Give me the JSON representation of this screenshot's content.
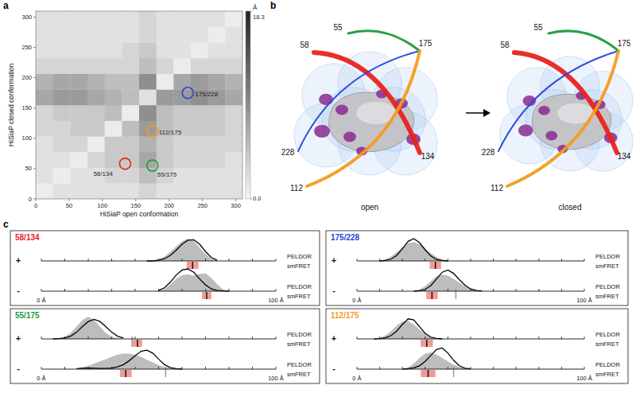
{
  "panel_labels": [
    "a",
    "b",
    "c"
  ],
  "chart_data": [
    {
      "type": "heatmap",
      "xlabel": "HiSiaP open conformation",
      "ylabel": "HiSiaP closed conformation",
      "xlim": [
        0,
        310
      ],
      "ylim": [
        0,
        310
      ],
      "xticks": [
        0,
        50,
        100,
        150,
        200,
        250,
        300
      ],
      "yticks": [
        0,
        50,
        100,
        150,
        200,
        250,
        300
      ],
      "cells": [
        [
          1,
          2,
          2,
          2,
          2,
          2,
          3,
          2,
          2,
          2,
          2,
          2
        ],
        [
          2,
          1,
          2,
          2,
          3,
          3,
          5,
          3,
          2,
          2,
          2,
          2
        ],
        [
          2,
          2,
          1,
          3,
          4,
          4,
          7,
          4,
          3,
          3,
          3,
          2
        ],
        [
          2,
          3,
          3,
          1,
          4,
          4,
          6,
          4,
          3,
          3,
          3,
          3
        ],
        [
          3,
          3,
          4,
          4,
          1,
          5,
          8,
          5,
          4,
          4,
          4,
          3
        ],
        [
          3,
          4,
          4,
          4,
          5,
          1,
          9,
          5,
          4,
          4,
          4,
          3
        ],
        [
          7,
          8,
          8,
          7,
          6,
          5,
          2,
          8,
          8,
          9,
          8,
          7
        ],
        [
          6,
          7,
          7,
          6,
          5,
          5,
          9,
          1,
          7,
          8,
          7,
          6
        ],
        [
          3,
          3,
          3,
          3,
          3,
          3,
          5,
          3,
          1,
          3,
          3,
          3
        ],
        [
          2,
          2,
          2,
          2,
          2,
          3,
          4,
          2,
          2,
          1,
          2,
          2
        ],
        [
          2,
          2,
          2,
          2,
          2,
          2,
          3,
          2,
          2,
          2,
          1,
          2
        ],
        [
          2,
          2,
          2,
          2,
          2,
          2,
          3,
          2,
          2,
          2,
          2,
          1
        ]
      ],
      "colorbar": {
        "label": "Å",
        "range": [
          0,
          18.3
        ],
        "ticks": [
          {
            "value": 0,
            "label": "0.0"
          },
          18.3
        ]
      },
      "annotations": [
        {
          "label": "58/134",
          "x": 134,
          "y": 58,
          "color": "#e8231f"
        },
        {
          "label": "55/175",
          "x": 175,
          "y": 55,
          "color": "#1f9a3a"
        },
        {
          "label": "112/175",
          "x": 175,
          "y": 112,
          "color": "#f39c1f"
        },
        {
          "label": "175/228",
          "x": 228,
          "y": 175,
          "color": "#2244dd"
        }
      ]
    },
    {
      "type": "distribution",
      "title": "58/134",
      "color": "#e8231f",
      "xlim": [
        0,
        100
      ],
      "ylim": [
        0,
        1
      ],
      "xticks": [
        {
          "value": 0,
          "label": "0 Å"
        },
        {
          "value": 100,
          "label": "100 Å"
        }
      ],
      "minor_ticks": [
        10,
        20,
        30,
        40,
        50,
        60,
        70,
        80,
        90
      ],
      "tick_labels": "x",
      "rows": [
        {
          "label": "+",
          "peldor": {
            "label": "PELDOR",
            "x": [
              45,
              47.5,
              50,
              52.5,
              55,
              57.5,
              60,
              62.5,
              65,
              67.5,
              70,
              72.5,
              75
            ],
            "values": [
              0,
              0.02,
              0.08,
              0.2,
              0.4,
              0.65,
              0.88,
              1.0,
              0.88,
              0.6,
              0.3,
              0.1,
              0.02
            ],
            "fit": [
              0,
              0,
              0.03,
              0.1,
              0.25,
              0.48,
              0.75,
              0.93,
              0.95,
              0.75,
              0.42,
              0.15,
              0.03
            ]
          },
          "smfret": {
            "label": "smFRET",
            "value": 64.5,
            "error": 2.5
          }
        },
        {
          "label": "-",
          "peldor": {
            "label": "PELDOR",
            "x": [
              50,
              52.5,
              55,
              57.5,
              60,
              62.5,
              65,
              67.5,
              70,
              72.5,
              75,
              77.5,
              80
            ],
            "values": [
              0.02,
              0.1,
              0.3,
              0.55,
              0.72,
              0.75,
              0.7,
              0.78,
              0.8,
              0.6,
              0.3,
              0.08,
              0.01
            ],
            "fit": [
              0.03,
              0.15,
              0.4,
              0.72,
              0.95,
              1.0,
              0.85,
              0.55,
              0.28,
              0.1,
              0.03,
              0.01,
              0
            ]
          },
          "smfret": {
            "label": "smFRET",
            "value": 70.5,
            "error": 2
          }
        }
      ]
    },
    {
      "type": "distribution",
      "title": "175/228",
      "color": "#2244dd",
      "xlim": [
        0,
        100
      ],
      "ylim": [
        0,
        1
      ],
      "xticks": [
        {
          "value": 0,
          "label": "0 Å"
        },
        {
          "value": 100,
          "label": "100 Å"
        }
      ],
      "minor_ticks": [
        10,
        20,
        30,
        40,
        50,
        60,
        70,
        80,
        90
      ],
      "tick_labels": "x",
      "rows": [
        {
          "label": "+",
          "peldor": {
            "label": "PELDOR",
            "x": [
              10,
              12.5,
              15,
              17.5,
              20,
              22.5,
              25,
              27.5,
              30,
              32.5,
              35,
              37.5,
              40
            ],
            "values": [
              0.02,
              0.08,
              0.2,
              0.4,
              0.62,
              0.8,
              0.85,
              0.75,
              0.55,
              0.35,
              0.18,
              0.07,
              0.02
            ],
            "fit": [
              0,
              0.02,
              0.08,
              0.25,
              0.55,
              0.88,
              1.0,
              0.82,
              0.5,
              0.22,
              0.07,
              0.02,
              0
            ]
          },
          "smfret": {
            "label": "smFRET",
            "value": 34.5,
            "error": 2.5
          }
        },
        {
          "label": "-",
          "peldor": {
            "label": "PELDOR",
            "x": [
              25,
              27.5,
              30,
              32.5,
              35,
              37.5,
              40,
              42.5,
              45,
              47.5,
              50,
              52.5,
              55
            ],
            "values": [
              0.02,
              0.08,
              0.22,
              0.45,
              0.68,
              0.75,
              0.7,
              0.55,
              0.38,
              0.22,
              0.1,
              0.03,
              0.01
            ],
            "fit": [
              0,
              0.02,
              0.08,
              0.25,
              0.55,
              0.85,
              0.95,
              0.8,
              0.52,
              0.27,
              0.1,
              0.03,
              0.01
            ]
          },
          "smfret": {
            "label": "smFRET",
            "value": 33,
            "error": 2.5,
            "prediction": 43.5
          }
        }
      ]
    },
    {
      "type": "distribution",
      "title": "55/175",
      "color": "#1f9a3a",
      "xlim": [
        0,
        100
      ],
      "ylim": [
        0,
        1
      ],
      "xticks": [
        {
          "value": 0,
          "label": "0 Å"
        },
        {
          "value": 100,
          "label": "100 Å"
        }
      ],
      "minor_ticks": [
        10,
        20,
        30,
        40,
        50,
        60,
        70,
        80,
        90
      ],
      "tick_labels": "x",
      "rows": [
        {
          "label": "+",
          "peldor": {
            "label": "PELDOR",
            "x": [
              5,
              7.5,
              10,
              12.5,
              15,
              17.5,
              20,
              22.5,
              25,
              27.5,
              30,
              32.5,
              35
            ],
            "values": [
              0.01,
              0.03,
              0.1,
              0.27,
              0.55,
              0.85,
              1.0,
              0.85,
              0.55,
              0.27,
              0.1,
              0.03,
              0.01
            ],
            "fit": [
              0,
              0.01,
              0.04,
              0.12,
              0.3,
              0.55,
              0.78,
              0.88,
              0.78,
              0.55,
              0.3,
              0.12,
              0.04
            ]
          },
          "smfret": {
            "label": "smFRET",
            "value": 41,
            "error": 2,
            "prediction": 38.7
          }
        },
        {
          "label": "-",
          "peldor": {
            "label": "PELDOR",
            "x": [
              15,
              17.5,
              20,
              22.5,
              25,
              27.5,
              30,
              32.5,
              35,
              37.5,
              40,
              42.5,
              45,
              47.5,
              50,
              52.5,
              55,
              57.5,
              60
            ],
            "values": [
              0.02,
              0.08,
              0.15,
              0.25,
              0.35,
              0.45,
              0.55,
              0.65,
              0.7,
              0.7,
              0.65,
              0.55,
              0.42,
              0.3,
              0.18,
              0.1,
              0.05,
              0.02,
              0
            ],
            "fit": [
              0.02,
              0.04,
              0.05,
              0.04,
              0.03,
              0.03,
              0.05,
              0.1,
              0.2,
              0.38,
              0.6,
              0.8,
              0.85,
              0.72,
              0.45,
              0.2,
              0.07,
              0.02,
              0
            ]
          },
          "smfret": {
            "label": "smFRET",
            "value": 36,
            "error": 2.5,
            "prediction": 53
          }
        }
      ]
    },
    {
      "type": "distribution",
      "title": "112/175",
      "color": "#f39c1f",
      "xlim": [
        0,
        100
      ],
      "ylim": [
        0,
        1
      ],
      "xticks": [
        {
          "value": 0,
          "label": "0 Å"
        },
        {
          "value": 100,
          "label": "100 Å"
        }
      ],
      "minor_ticks": [
        10,
        20,
        30,
        40,
        50,
        60,
        70,
        80,
        90
      ],
      "tick_labels": "x",
      "rows": [
        {
          "label": "+",
          "peldor": {
            "label": "PELDOR",
            "x": [
              7.5,
              10,
              12.5,
              15,
              17.5,
              20,
              22.5,
              25,
              27.5,
              30,
              32.5,
              35,
              37.5
            ],
            "values": [
              0.01,
              0.05,
              0.15,
              0.35,
              0.6,
              0.78,
              0.8,
              0.65,
              0.42,
              0.22,
              0.08,
              0.02,
              0
            ],
            "fit": [
              0,
              0.01,
              0.05,
              0.15,
              0.35,
              0.65,
              0.9,
              0.85,
              0.55,
              0.25,
              0.08,
              0.02,
              0
            ]
          },
          "smfret": {
            "label": "smFRET",
            "value": 30.7,
            "error": 2.7
          }
        },
        {
          "label": "-",
          "peldor": {
            "label": "PELDOR",
            "x": [
              20,
              22.5,
              25,
              27.5,
              30,
              32.5,
              35,
              37.5,
              40,
              42.5,
              45,
              47.5,
              50
            ],
            "values": [
              0.02,
              0.08,
              0.25,
              0.5,
              0.7,
              0.75,
              0.65,
              0.5,
              0.35,
              0.2,
              0.1,
              0.04,
              0.01
            ],
            "fit": [
              0,
              0.02,
              0.06,
              0.15,
              0.35,
              0.62,
              0.88,
              0.95,
              0.72,
              0.4,
              0.15,
              0.04,
              0.01
            ]
          },
          "smfret": {
            "label": "smFRET",
            "value": 31.3,
            "error": 3.2,
            "prediction": 42.5
          }
        }
      ]
    }
  ],
  "diagram": {
    "structures": [
      {
        "label": "open"
      },
      {
        "label": "closed"
      }
    ],
    "residues": [
      "55",
      "58",
      "175",
      "228",
      "112",
      "134"
    ],
    "pairs": [
      {
        "residues": [
          "58",
          "134"
        ],
        "color": "#e8231f"
      },
      {
        "residues": [
          "55",
          "175"
        ],
        "color": "#1f9a3a"
      },
      {
        "residues": [
          "228",
          "175"
        ],
        "color": "#2244dd"
      },
      {
        "residues": [
          "112",
          "175"
        ],
        "color": "#f39c1f"
      }
    ]
  }
}
